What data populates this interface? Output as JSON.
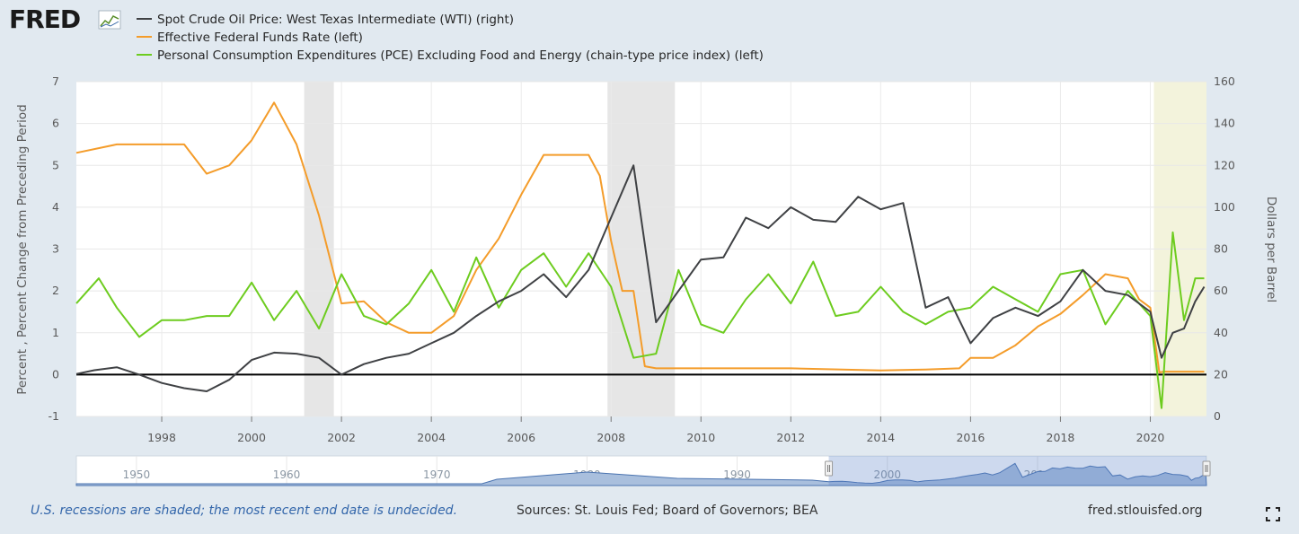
{
  "logo": {
    "text": "FRED"
  },
  "footer": {
    "recession_note": "U.S. recessions are shaded; the most recent end date is undecided.",
    "sources": "Sources: St. Louis Fed; Board of Governors; BEA",
    "url": "fred.stlouisfed.org"
  },
  "colors": {
    "wti": "#3f4144",
    "ffr": "#f49c2a",
    "pce": "#6dcc1f",
    "recession": "#e6e6e6",
    "recent_recession": "#f3f3dc"
  },
  "chart_data": {
    "type": "line",
    "legend": [
      "Spot Crude Oil Price: West Texas Intermediate (WTI) (right)",
      "Effective Federal Funds Rate (left)",
      "Personal Consumption Expenditures (PCE) Excluding Food and Energy (chain-type price index) (left)"
    ],
    "ylabel_left": "Percent , Percent Change from Preceding Period",
    "ylabel_right": "Dollars per Barrel",
    "xlim": [
      1996.1,
      2021.25
    ],
    "ylim_left": [
      -1,
      7
    ],
    "ylim_right": [
      0,
      160
    ],
    "x_ticks": [
      "1998",
      "2000",
      "2002",
      "2004",
      "2006",
      "2008",
      "2010",
      "2012",
      "2014",
      "2016",
      "2018",
      "2020"
    ],
    "y_ticks_left": [
      "-1",
      "0",
      "1",
      "2",
      "3",
      "4",
      "5",
      "6",
      "7"
    ],
    "y_ticks_right": [
      "0",
      "20",
      "40",
      "60",
      "80",
      "100",
      "120",
      "140",
      "160"
    ],
    "recessions": [
      [
        2001.17,
        2001.83
      ],
      [
        2007.92,
        2009.42
      ]
    ],
    "recent_recession": [
      2020.08,
      2021.25
    ],
    "zero_line": 0,
    "series": [
      {
        "name": "Spot Crude Oil Price: West Texas Intermediate (WTI) (right)",
        "axis": "right",
        "x": [
          1996.1,
          1996.5,
          1997.0,
          1997.5,
          1998.0,
          1998.5,
          1999.0,
          1999.5,
          2000.0,
          2000.5,
          2001.0,
          2001.5,
          2002.0,
          2002.5,
          2003.0,
          2003.5,
          2004.0,
          2004.5,
          2005.0,
          2005.5,
          2006.0,
          2006.5,
          2007.0,
          2007.5,
          2008.0,
          2008.5,
          2009.0,
          2009.5,
          2010.0,
          2010.5,
          2011.0,
          2011.5,
          2012.0,
          2012.5,
          2013.0,
          2013.5,
          2014.0,
          2014.5,
          2015.0,
          2015.5,
          2016.0,
          2016.5,
          2017.0,
          2017.5,
          2018.0,
          2018.5,
          2019.0,
          2019.5,
          2020.0,
          2020.25,
          2020.5,
          2020.75,
          2021.0,
          2021.2
        ],
        "values": [
          20.3,
          22.1,
          23.5,
          20.0,
          16.0,
          13.5,
          12.0,
          17.5,
          27.0,
          30.5,
          30.0,
          28.0,
          20.0,
          25.0,
          28.0,
          30.0,
          35.0,
          40.0,
          48.0,
          55.0,
          60.0,
          68.0,
          57.0,
          70.0,
          95.0,
          120.0,
          45.0,
          60.0,
          75.0,
          76.0,
          95.0,
          90.0,
          100.0,
          94.0,
          93.0,
          105.0,
          99.0,
          102.0,
          52.0,
          57.0,
          35.0,
          47.0,
          52.0,
          48.0,
          55.0,
          70.0,
          60.0,
          58.0,
          50.0,
          28.0,
          40.0,
          42.0,
          55.0,
          62.0
        ]
      },
      {
        "name": "Effective Federal Funds Rate (left)",
        "axis": "left",
        "x": [
          1996.1,
          1997.0,
          1997.5,
          1998.0,
          1998.5,
          1999.0,
          1999.5,
          2000.0,
          2000.5,
          2001.0,
          2001.5,
          2002.0,
          2002.5,
          2003.0,
          2003.5,
          2004.0,
          2004.5,
          2005.0,
          2005.5,
          2006.0,
          2006.5,
          2007.0,
          2007.5,
          2007.75,
          2008.0,
          2008.25,
          2008.5,
          2008.75,
          2009.0,
          2010.0,
          2012.0,
          2014.0,
          2015.0,
          2015.75,
          2016.0,
          2016.5,
          2017.0,
          2017.5,
          2018.0,
          2018.5,
          2019.0,
          2019.5,
          2019.75,
          2020.0,
          2020.2,
          2020.3,
          2021.2
        ],
        "values": [
          5.3,
          5.5,
          5.5,
          5.5,
          5.5,
          4.8,
          5.0,
          5.6,
          6.5,
          5.5,
          3.8,
          1.7,
          1.75,
          1.25,
          1.0,
          1.0,
          1.4,
          2.5,
          3.25,
          4.3,
          5.25,
          5.25,
          5.25,
          4.75,
          3.2,
          2.0,
          2.0,
          0.2,
          0.15,
          0.15,
          0.15,
          0.1,
          0.12,
          0.15,
          0.4,
          0.4,
          0.7,
          1.15,
          1.45,
          1.9,
          2.4,
          2.3,
          1.8,
          1.6,
          0.05,
          0.07,
          0.07
        ]
      },
      {
        "name": "Personal Consumption Expenditures (PCE) Excluding Food and Energy (chain-type price index) (left)",
        "axis": "left",
        "x": [
          1996.1,
          1996.6,
          1997.0,
          1997.5,
          1998.0,
          1998.5,
          1999.0,
          1999.5,
          2000.0,
          2000.5,
          2001.0,
          2001.5,
          2002.0,
          2002.5,
          2003.0,
          2003.5,
          2004.0,
          2004.5,
          2005.0,
          2005.5,
          2006.0,
          2006.5,
          2007.0,
          2007.5,
          2008.0,
          2008.5,
          2009.0,
          2009.5,
          2010.0,
          2010.5,
          2011.0,
          2011.5,
          2012.0,
          2012.5,
          2013.0,
          2013.5,
          2014.0,
          2014.5,
          2015.0,
          2015.5,
          2016.0,
          2016.5,
          2017.0,
          2017.5,
          2018.0,
          2018.5,
          2019.0,
          2019.5,
          2020.0,
          2020.25,
          2020.5,
          2020.75,
          2021.0,
          2021.2
        ],
        "values": [
          1.7,
          2.3,
          1.6,
          0.9,
          1.3,
          1.3,
          1.4,
          1.4,
          2.2,
          1.3,
          2.0,
          1.1,
          2.4,
          1.4,
          1.2,
          1.7,
          2.5,
          1.5,
          2.8,
          1.6,
          2.5,
          2.9,
          2.1,
          2.9,
          2.1,
          0.4,
          0.5,
          2.5,
          1.2,
          1.0,
          1.8,
          2.4,
          1.7,
          2.7,
          1.4,
          1.5,
          2.1,
          1.5,
          1.2,
          1.5,
          1.6,
          2.1,
          1.8,
          1.5,
          2.4,
          2.5,
          1.2,
          2.0,
          1.4,
          -0.8,
          3.4,
          1.3,
          2.3,
          2.3
        ]
      }
    ]
  },
  "navigator": {
    "labels": [
      "1950",
      "1960",
      "1970",
      "1980",
      "1990",
      "2000",
      "2010"
    ],
    "range": [
      1946,
      2021.25
    ],
    "selected": [
      1996.1,
      2021.25
    ]
  }
}
